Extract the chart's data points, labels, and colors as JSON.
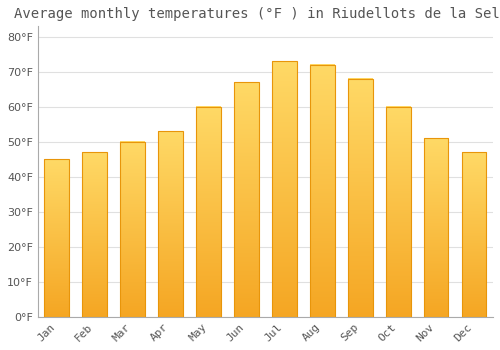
{
  "title": "Average monthly temperatures (°F ) in Riudellots de la Selva",
  "months": [
    "Jan",
    "Feb",
    "Mar",
    "Apr",
    "May",
    "Jun",
    "Jul",
    "Aug",
    "Sep",
    "Oct",
    "Nov",
    "Dec"
  ],
  "values": [
    45,
    47,
    50,
    53,
    60,
    67,
    73,
    72,
    68,
    60,
    51,
    47
  ],
  "bar_color_top": "#FFD966",
  "bar_color_bottom": "#F5A623",
  "bar_edge_color": "#E8950A",
  "background_color": "#FFFFFF",
  "grid_color": "#E0E0E0",
  "text_color": "#555555",
  "ylim": [
    0,
    83
  ],
  "yticks": [
    0,
    10,
    20,
    30,
    40,
    50,
    60,
    70,
    80
  ],
  "title_fontsize": 10,
  "tick_fontsize": 8,
  "bar_width": 0.65
}
